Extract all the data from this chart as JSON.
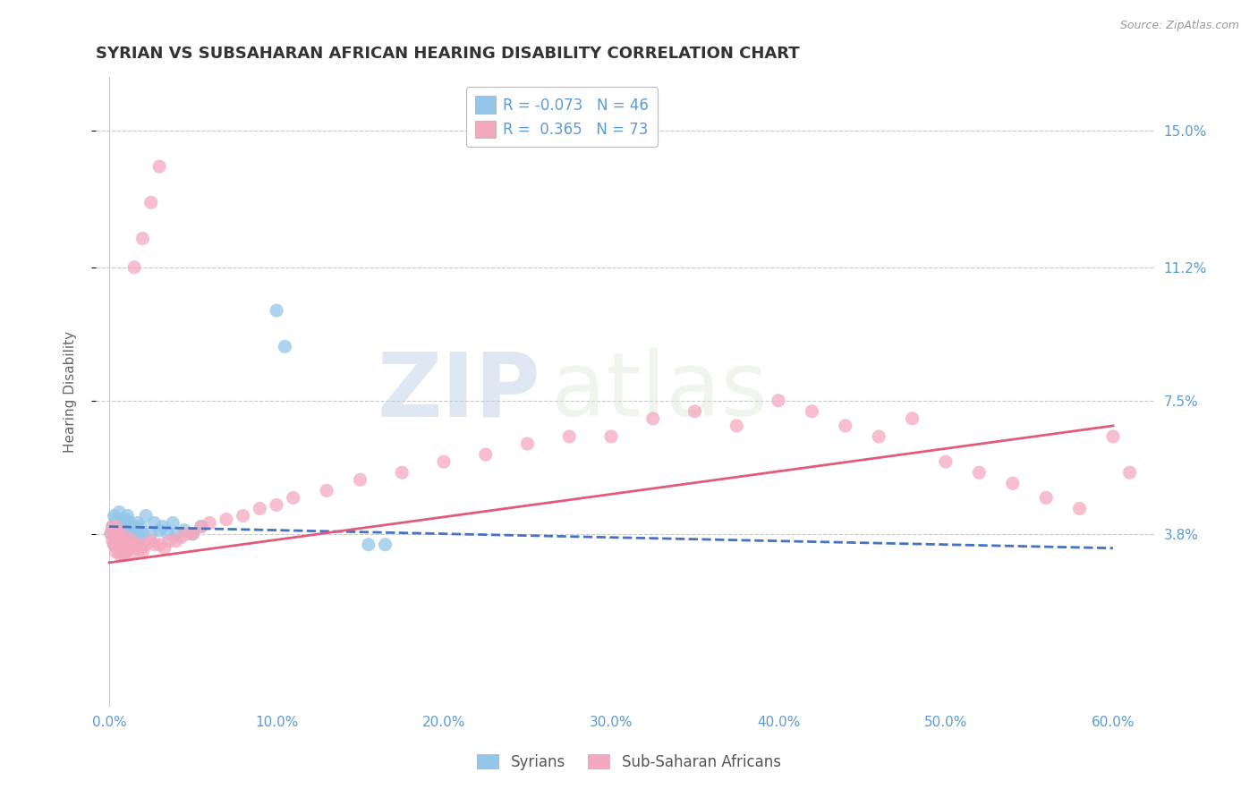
{
  "title": "SYRIAN VS SUBSAHARAN AFRICAN HEARING DISABILITY CORRELATION CHART",
  "source": "Source: ZipAtlas.com",
  "ylabel": "Hearing Disability",
  "xlabel_ticks": [
    "0.0%",
    "10.0%",
    "20.0%",
    "30.0%",
    "40.0%",
    "50.0%",
    "60.0%"
  ],
  "xlabel_vals": [
    0.0,
    0.1,
    0.2,
    0.3,
    0.4,
    0.5,
    0.6
  ],
  "ytick_labels": [
    "3.8%",
    "7.5%",
    "11.2%",
    "15.0%"
  ],
  "ytick_vals": [
    0.038,
    0.075,
    0.112,
    0.15
  ],
  "xlim": [
    -0.008,
    0.625
  ],
  "ylim": [
    -0.01,
    0.165
  ],
  "legend_syrian_R": "-0.073",
  "legend_syrian_N": "46",
  "legend_subsaharan_R": "0.365",
  "legend_subsaharan_N": "73",
  "syrian_color": "#93c6e8",
  "subsaharan_color": "#f4a8be",
  "syrian_line_color": "#4472c4",
  "subsaharan_line_color": "#e05a7a",
  "background_color": "#ffffff",
  "watermark_zip": "ZIP",
  "watermark_atlas": "atlas",
  "grid_color": "#c8c8c8",
  "tick_color": "#5b9bd5",
  "title_fontsize": 13,
  "axis_label_fontsize": 11,
  "tick_fontsize": 11,
  "legend_fontsize": 12,
  "syrian_scatter_x": [
    0.001,
    0.002,
    0.003,
    0.003,
    0.004,
    0.004,
    0.005,
    0.005,
    0.006,
    0.006,
    0.007,
    0.007,
    0.008,
    0.008,
    0.009,
    0.009,
    0.01,
    0.01,
    0.011,
    0.011,
    0.012,
    0.012,
    0.013,
    0.014,
    0.015,
    0.015,
    0.016,
    0.017,
    0.018,
    0.019,
    0.02,
    0.022,
    0.025,
    0.027,
    0.03,
    0.032,
    0.035,
    0.038,
    0.04,
    0.045,
    0.05,
    0.055,
    0.1,
    0.105,
    0.155,
    0.165
  ],
  "syrian_scatter_y": [
    0.038,
    0.04,
    0.035,
    0.043,
    0.038,
    0.042,
    0.037,
    0.04,
    0.038,
    0.044,
    0.036,
    0.041,
    0.038,
    0.042,
    0.036,
    0.04,
    0.037,
    0.042,
    0.038,
    0.043,
    0.038,
    0.041,
    0.037,
    0.038,
    0.036,
    0.04,
    0.038,
    0.041,
    0.037,
    0.04,
    0.038,
    0.043,
    0.038,
    0.041,
    0.039,
    0.04,
    0.038,
    0.041,
    0.038,
    0.039,
    0.038,
    0.04,
    0.1,
    0.09,
    0.035,
    0.035
  ],
  "subsaharan_scatter_x": [
    0.001,
    0.002,
    0.002,
    0.003,
    0.003,
    0.004,
    0.004,
    0.005,
    0.005,
    0.006,
    0.006,
    0.007,
    0.007,
    0.008,
    0.008,
    0.009,
    0.009,
    0.01,
    0.01,
    0.011,
    0.012,
    0.013,
    0.014,
    0.015,
    0.016,
    0.017,
    0.018,
    0.019,
    0.02,
    0.022,
    0.025,
    0.027,
    0.03,
    0.033,
    0.036,
    0.04,
    0.043,
    0.047,
    0.05,
    0.055,
    0.06,
    0.07,
    0.08,
    0.09,
    0.1,
    0.11,
    0.13,
    0.15,
    0.175,
    0.2,
    0.225,
    0.25,
    0.275,
    0.3,
    0.325,
    0.35,
    0.375,
    0.4,
    0.42,
    0.44,
    0.46,
    0.48,
    0.5,
    0.52,
    0.54,
    0.56,
    0.58,
    0.6,
    0.61,
    0.015,
    0.02,
    0.025,
    0.03
  ],
  "subsaharan_scatter_y": [
    0.038,
    0.036,
    0.04,
    0.035,
    0.038,
    0.033,
    0.04,
    0.035,
    0.038,
    0.033,
    0.037,
    0.032,
    0.038,
    0.033,
    0.036,
    0.032,
    0.035,
    0.033,
    0.037,
    0.034,
    0.035,
    0.034,
    0.036,
    0.033,
    0.035,
    0.034,
    0.035,
    0.034,
    0.033,
    0.035,
    0.036,
    0.035,
    0.035,
    0.034,
    0.036,
    0.036,
    0.037,
    0.038,
    0.038,
    0.04,
    0.041,
    0.042,
    0.043,
    0.045,
    0.046,
    0.048,
    0.05,
    0.053,
    0.055,
    0.058,
    0.06,
    0.063,
    0.065,
    0.065,
    0.07,
    0.072,
    0.068,
    0.075,
    0.072,
    0.068,
    0.065,
    0.07,
    0.058,
    0.055,
    0.052,
    0.048,
    0.045,
    0.065,
    0.055,
    0.112,
    0.12,
    0.13,
    0.14
  ],
  "syrian_line_x": [
    0.0,
    0.6
  ],
  "syrian_line_y": [
    0.04,
    0.034
  ],
  "subsaharan_line_x": [
    0.0,
    0.6
  ],
  "subsaharan_line_y": [
    0.03,
    0.068
  ]
}
